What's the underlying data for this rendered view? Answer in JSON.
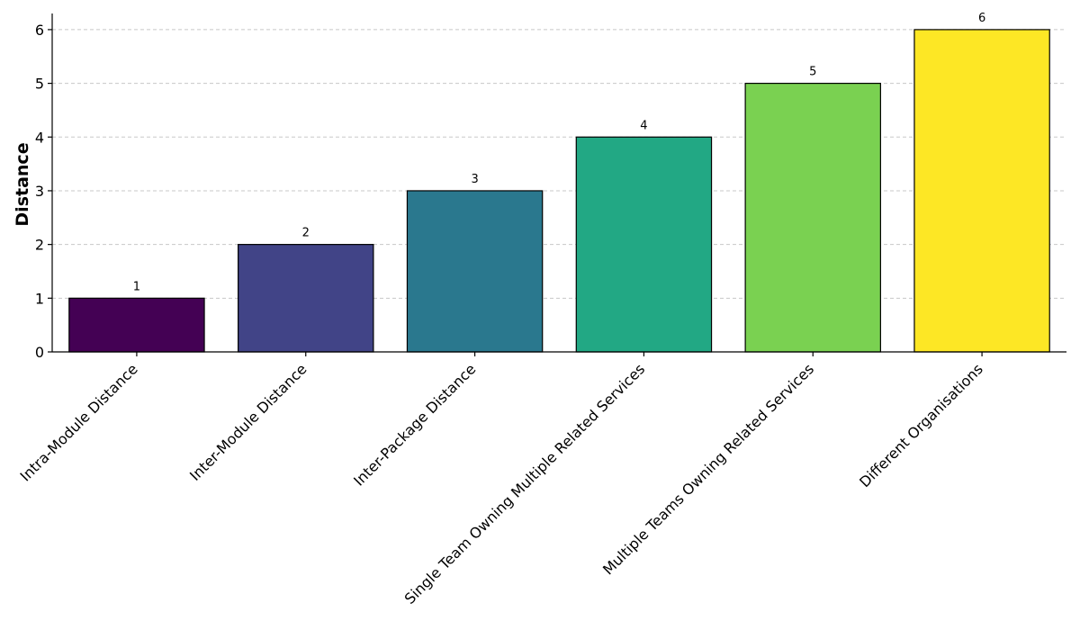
{
  "chart_data": {
    "type": "bar",
    "categories": [
      "Intra-Module Distance",
      "Inter-Module Distance",
      "Inter-Package Distance",
      "Single Team Owning Multiple Related Services",
      "Multiple Teams Owning Related Services",
      "Different Organisations"
    ],
    "values": [
      1,
      2,
      3,
      4,
      5,
      6
    ],
    "data_labels": [
      "1",
      "2",
      "3",
      "4",
      "5",
      "6"
    ],
    "colors": [
      "#440154",
      "#414487",
      "#2a788e",
      "#22a884",
      "#7ad151",
      "#fde725"
    ],
    "title": "",
    "xlabel": "",
    "ylabel": "Distance",
    "ylim": [
      0,
      6.3
    ],
    "yticks": [
      0,
      1,
      2,
      3,
      4,
      5,
      6
    ],
    "ytick_labels": [
      "0",
      "1",
      "2",
      "3",
      "4",
      "5",
      "6"
    ],
    "grid": "y-dashed",
    "legend": "none"
  }
}
